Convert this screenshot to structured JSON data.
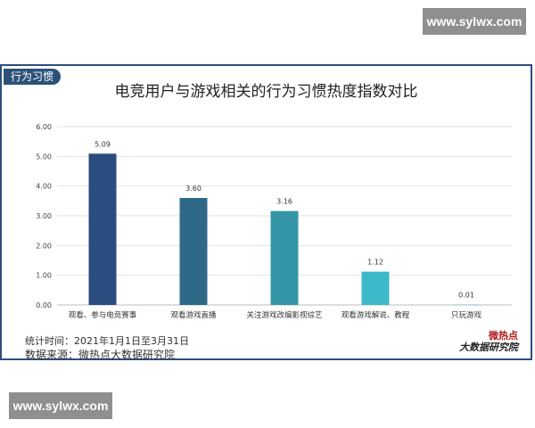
{
  "watermark": {
    "top": "www.sylwx.com",
    "bottom": "www.sylwx.com"
  },
  "tag": "行为习惯",
  "footer": {
    "period": "统计时间：2021年1月1日至3月31日",
    "source": "数据来源：微热点大数据研究院"
  },
  "logo": {
    "line1": "微热点",
    "line2": "大数据研究院"
  },
  "colors": {
    "border": "#2c4f7c",
    "tag": "#2b5179"
  },
  "chart_data": {
    "type": "bar",
    "title": "电竞用户与游戏相关的行为习惯热度指数对比",
    "categories": [
      "观看、参与电竞赛事",
      "观看游戏直播",
      "关注游戏改编影视综艺",
      "观看游戏解说、教程",
      "只玩游戏"
    ],
    "values": [
      5.09,
      3.6,
      3.16,
      1.12,
      0.01
    ],
    "value_labels": [
      "5.09",
      "3.60",
      "3.16",
      "1.12",
      "0.01"
    ],
    "bar_colors": [
      "#2b4c7e",
      "#2e6a88",
      "#3596a8",
      "#3db8c8",
      "#3db8c8"
    ],
    "ylim": [
      0,
      6
    ],
    "yticks": [
      "0.00",
      "1.00",
      "2.00",
      "3.00",
      "4.00",
      "5.00",
      "6.00"
    ],
    "grid": true,
    "xlabel": "",
    "ylabel": ""
  }
}
